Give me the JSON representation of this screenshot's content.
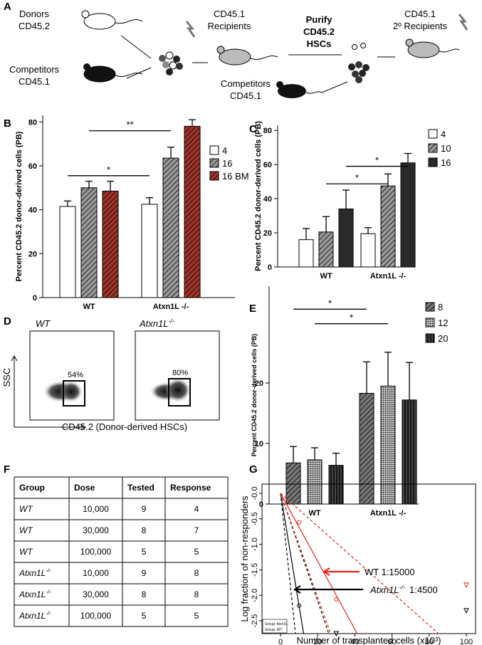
{
  "panel_labels": [
    "A",
    "B",
    "C",
    "D",
    "E",
    "F",
    "G"
  ],
  "diagram": {
    "donors": [
      "Donors",
      "CD45.2"
    ],
    "competitors": [
      "Competitors",
      "CD45.1"
    ],
    "recipients": [
      "CD45.1",
      "Recipients"
    ],
    "purify": [
      "Purify",
      "CD45.2",
      "HSCs"
    ],
    "competitors_2": [
      "Competitors",
      "CD45.1"
    ],
    "secondary": [
      "CD45.1",
      "2º Recipients"
    ]
  },
  "flow": {
    "plots": [
      {
        "label": "WT",
        "gate": "54%"
      },
      {
        "label": "Atxn1L",
        "sup": "-/-",
        "gate": "80%"
      }
    ],
    "y_label": "SSC",
    "x_label": "CD45.2 (Donor-derived HSCs)"
  },
  "table": {
    "header": [
      "Group",
      "Dose",
      "Tested",
      "Response"
    ],
    "rows": [
      [
        {
          "name": "WT"
        },
        "10,000",
        "9",
        "4"
      ],
      [
        {
          "name": "WT"
        },
        "30,000",
        "8",
        "7"
      ],
      [
        {
          "name": "WT"
        },
        "100,000",
        "5",
        "5"
      ],
      [
        {
          "name": "Atxn1L",
          "sup": "-/-"
        },
        "10,000",
        "9",
        "8"
      ],
      [
        {
          "name": "Atxn1L",
          "sup": "-/-"
        },
        "30,000",
        "8",
        "8"
      ],
      [
        {
          "name": "Atxn1L",
          "sup": "-/-"
        },
        "100,000",
        "5",
        "5"
      ]
    ]
  },
  "chart_data": [
    {
      "type": "bar",
      "y_label": "Percent CD45.2 donor-derived cells (PB)",
      "categories": [
        "WT",
        "Atxn1L -/-"
      ],
      "ylim": [
        0,
        83
      ],
      "yticks": [
        0,
        20,
        40,
        60,
        80
      ],
      "series": [
        {
          "name": "4",
          "color": "#ffffff",
          "pattern": "solid",
          "values": [
            41.5,
            42.5
          ],
          "errors": [
            2.5,
            3
          ]
        },
        {
          "name": "16",
          "color": "#9a9a9a",
          "pattern": "diagonal",
          "values": [
            50,
            63.5
          ],
          "errors": [
            3,
            5
          ]
        },
        {
          "name": "16 BM",
          "color": "#a0342a",
          "pattern": "diagonal",
          "values": [
            48.5,
            78
          ],
          "errors": [
            4.5,
            3
          ]
        }
      ],
      "annotations": [
        "*",
        "**"
      ]
    },
    {
      "type": "bar",
      "y_label": "Percent CD45.2 donor-derived cells (PB)",
      "categories": [
        "WT",
        "Atxn1L -/-"
      ],
      "ylim": [
        0,
        83
      ],
      "yticks": [
        0,
        20,
        40,
        60,
        80
      ],
      "series": [
        {
          "name": "4",
          "color": "#ffffff",
          "pattern": "solid",
          "values": [
            16,
            19.5
          ],
          "errors": [
            6.5,
            3.5
          ]
        },
        {
          "name": "10",
          "color": "#9a9a9a",
          "pattern": "diagonal",
          "values": [
            20.5,
            47.5
          ],
          "errors": [
            9,
            7
          ]
        },
        {
          "name": "16",
          "color": "#2a2a2a",
          "pattern": "solid",
          "values": [
            34,
            61
          ],
          "errors": [
            11,
            5.5
          ]
        }
      ],
      "annotations": [
        "*",
        "*"
      ]
    },
    {
      "type": "bar",
      "y_label": "Percent CD45.2 donor-derived cells (PB)",
      "categories": [
        "WT",
        "Atxn1L -/-"
      ],
      "ylim": [
        0,
        36
      ],
      "yticks": [
        0,
        10,
        20
      ],
      "series": [
        {
          "name": "8",
          "color": "#777777",
          "pattern": "diagonal",
          "values": [
            6.8,
            18.3
          ],
          "errors": [
            2.7,
            5.2
          ]
        },
        {
          "name": "12",
          "color": "#bbbbbb",
          "pattern": "dots",
          "values": [
            7.3,
            19.5
          ],
          "errors": [
            2,
            5.6
          ]
        },
        {
          "name": "20",
          "color": "#444444",
          "pattern": "vertical",
          "values": [
            6.4,
            17.2
          ],
          "errors": [
            2,
            6.2
          ]
        }
      ],
      "annotations": [
        "*",
        "*"
      ]
    },
    {
      "type": "dilution",
      "x_label": "Number of transplanted cells (x10³)",
      "y_label": "Log fraction of non-responders",
      "xlim": [
        -10,
        105
      ],
      "ylim": [
        -2.75,
        0.18
      ],
      "xticks": [
        0,
        20,
        40,
        60,
        80,
        100
      ],
      "yticks": [
        {
          "value": 0,
          "label": "-0.0"
        },
        -0.5,
        {
          "value": -1,
          "label": "-1.0"
        },
        -1.5,
        {
          "value": -2,
          "label": "-2.0"
        },
        -2.5
      ],
      "series": [
        {
          "name": "Group: Atxn1L",
          "color": "#000000",
          "dash": false,
          "x": [
            0,
            12.4
          ],
          "values": [
            0,
            -2.75
          ]
        },
        {
          "color": "#000000",
          "dash": true,
          "x": [
            0,
            26
          ],
          "values": [
            0,
            -2.75
          ]
        },
        {
          "color": "#000000",
          "dash": true,
          "x": [
            0,
            8
          ],
          "values": [
            0,
            -2.75
          ]
        },
        {
          "name": "Group: WT",
          "color": "#e0241b",
          "dash": false,
          "x": [
            0,
            41.25
          ],
          "values": [
            0,
            -2.75
          ]
        },
        {
          "color": "#e0241b",
          "dash": true,
          "x": [
            0,
            85
          ],
          "values": [
            0,
            -2.75
          ]
        },
        {
          "color": "#e0241b",
          "dash": true,
          "x": [
            0,
            27
          ],
          "values": [
            0,
            -2.75
          ]
        }
      ],
      "points": [
        {
          "color": "#e0241b",
          "x": [
            10,
            30,
            100
          ],
          "values": [
            -0.57,
            -2.08,
            -1.8
          ],
          "markers": [
            "circle",
            "circle",
            "triangle"
          ]
        },
        {
          "color": "#000000",
          "x": [
            10,
            30,
            100
          ],
          "values": [
            -2.2,
            -2.75,
            -2.3
          ],
          "markers": [
            "circle",
            "triangle",
            "triangle"
          ]
        }
      ],
      "annotations": [
        {
          "text": "WT 1:15000"
        },
        {
          "text": "Atxn1L",
          "sup": "-/-",
          "ratio": "1:4500"
        }
      ]
    }
  ]
}
